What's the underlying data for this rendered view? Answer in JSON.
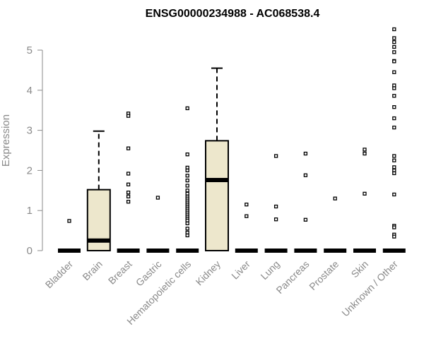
{
  "chart_data": {
    "type": "box",
    "title": "ENSG00000234988 - AC068538.4",
    "ylabel": "Expression",
    "xlabel": "",
    "ylim": [
      0,
      5.6
    ],
    "yticks": [
      0,
      1,
      2,
      3,
      4,
      5
    ],
    "grid": false,
    "legend": "none",
    "box_fill": "#ede7cc",
    "box_stroke": "#000000",
    "categories": [
      "Bladder",
      "Brain",
      "Breast",
      "Gastric",
      "Hematopoietic cells",
      "Kidney",
      "Liver",
      "Lung",
      "Pancreas",
      "Prostate",
      "Skin",
      "Unknown / Other"
    ],
    "boxes": [
      {
        "q1": 0,
        "median": 0,
        "q3": 0,
        "whisker_low": 0,
        "whisker_high": 0,
        "outliers": [
          0.74
        ]
      },
      {
        "q1": 0,
        "median": 0.25,
        "q3": 1.52,
        "whisker_low": 0,
        "whisker_high": 2.98,
        "outliers": []
      },
      {
        "q1": 0,
        "median": 0,
        "q3": 0,
        "whisker_low": 0,
        "whisker_high": 0,
        "outliers": [
          3.42,
          3.36,
          2.55,
          1.92,
          1.65,
          1.45,
          1.35,
          1.22
        ]
      },
      {
        "q1": 0,
        "median": 0,
        "q3": 0,
        "whisker_low": 0,
        "whisker_high": 0,
        "outliers": [
          1.32
        ]
      },
      {
        "q1": 0,
        "median": 0,
        "q3": 0,
        "whisker_low": 0,
        "whisker_high": 0,
        "outliers": [
          3.55,
          2.4,
          2.07,
          2.0,
          1.87,
          1.75,
          1.62,
          1.5,
          1.42,
          1.35,
          1.3,
          1.25,
          1.2,
          1.15,
          1.1,
          1.05,
          1.0,
          0.95,
          0.9,
          0.85,
          0.8,
          0.75,
          0.68,
          0.55,
          0.45,
          0.38
        ]
      },
      {
        "q1": 0,
        "median": 1.76,
        "q3": 2.74,
        "whisker_low": 0,
        "whisker_high": 4.55,
        "outliers": []
      },
      {
        "q1": 0,
        "median": 0,
        "q3": 0,
        "whisker_low": 0,
        "whisker_high": 0,
        "outliers": [
          1.15,
          0.86
        ]
      },
      {
        "q1": 0,
        "median": 0,
        "q3": 0,
        "whisker_low": 0,
        "whisker_high": 0,
        "outliers": [
          2.36,
          1.1,
          0.78
        ]
      },
      {
        "q1": 0,
        "median": 0,
        "q3": 0,
        "whisker_low": 0,
        "whisker_high": 0,
        "outliers": [
          2.42,
          1.88,
          0.77
        ]
      },
      {
        "q1": 0,
        "median": 0,
        "q3": 0,
        "whisker_low": 0,
        "whisker_high": 0,
        "outliers": [
          1.3
        ]
      },
      {
        "q1": 0,
        "median": 0,
        "q3": 0,
        "whisker_low": 0,
        "whisker_high": 0,
        "outliers": [
          2.52,
          2.42,
          1.42
        ]
      },
      {
        "q1": 0,
        "median": 0,
        "q3": 0,
        "whisker_low": 0,
        "whisker_high": 0,
        "outliers": [
          5.52,
          5.3,
          5.2,
          5.08,
          4.95,
          4.73,
          4.72,
          4.45,
          4.12,
          4.05,
          3.86,
          3.58,
          3.3,
          3.07,
          2.36,
          2.25,
          2.08,
          2.0,
          1.93,
          1.4,
          0.62,
          0.58,
          0.4,
          0.35
        ]
      }
    ]
  }
}
